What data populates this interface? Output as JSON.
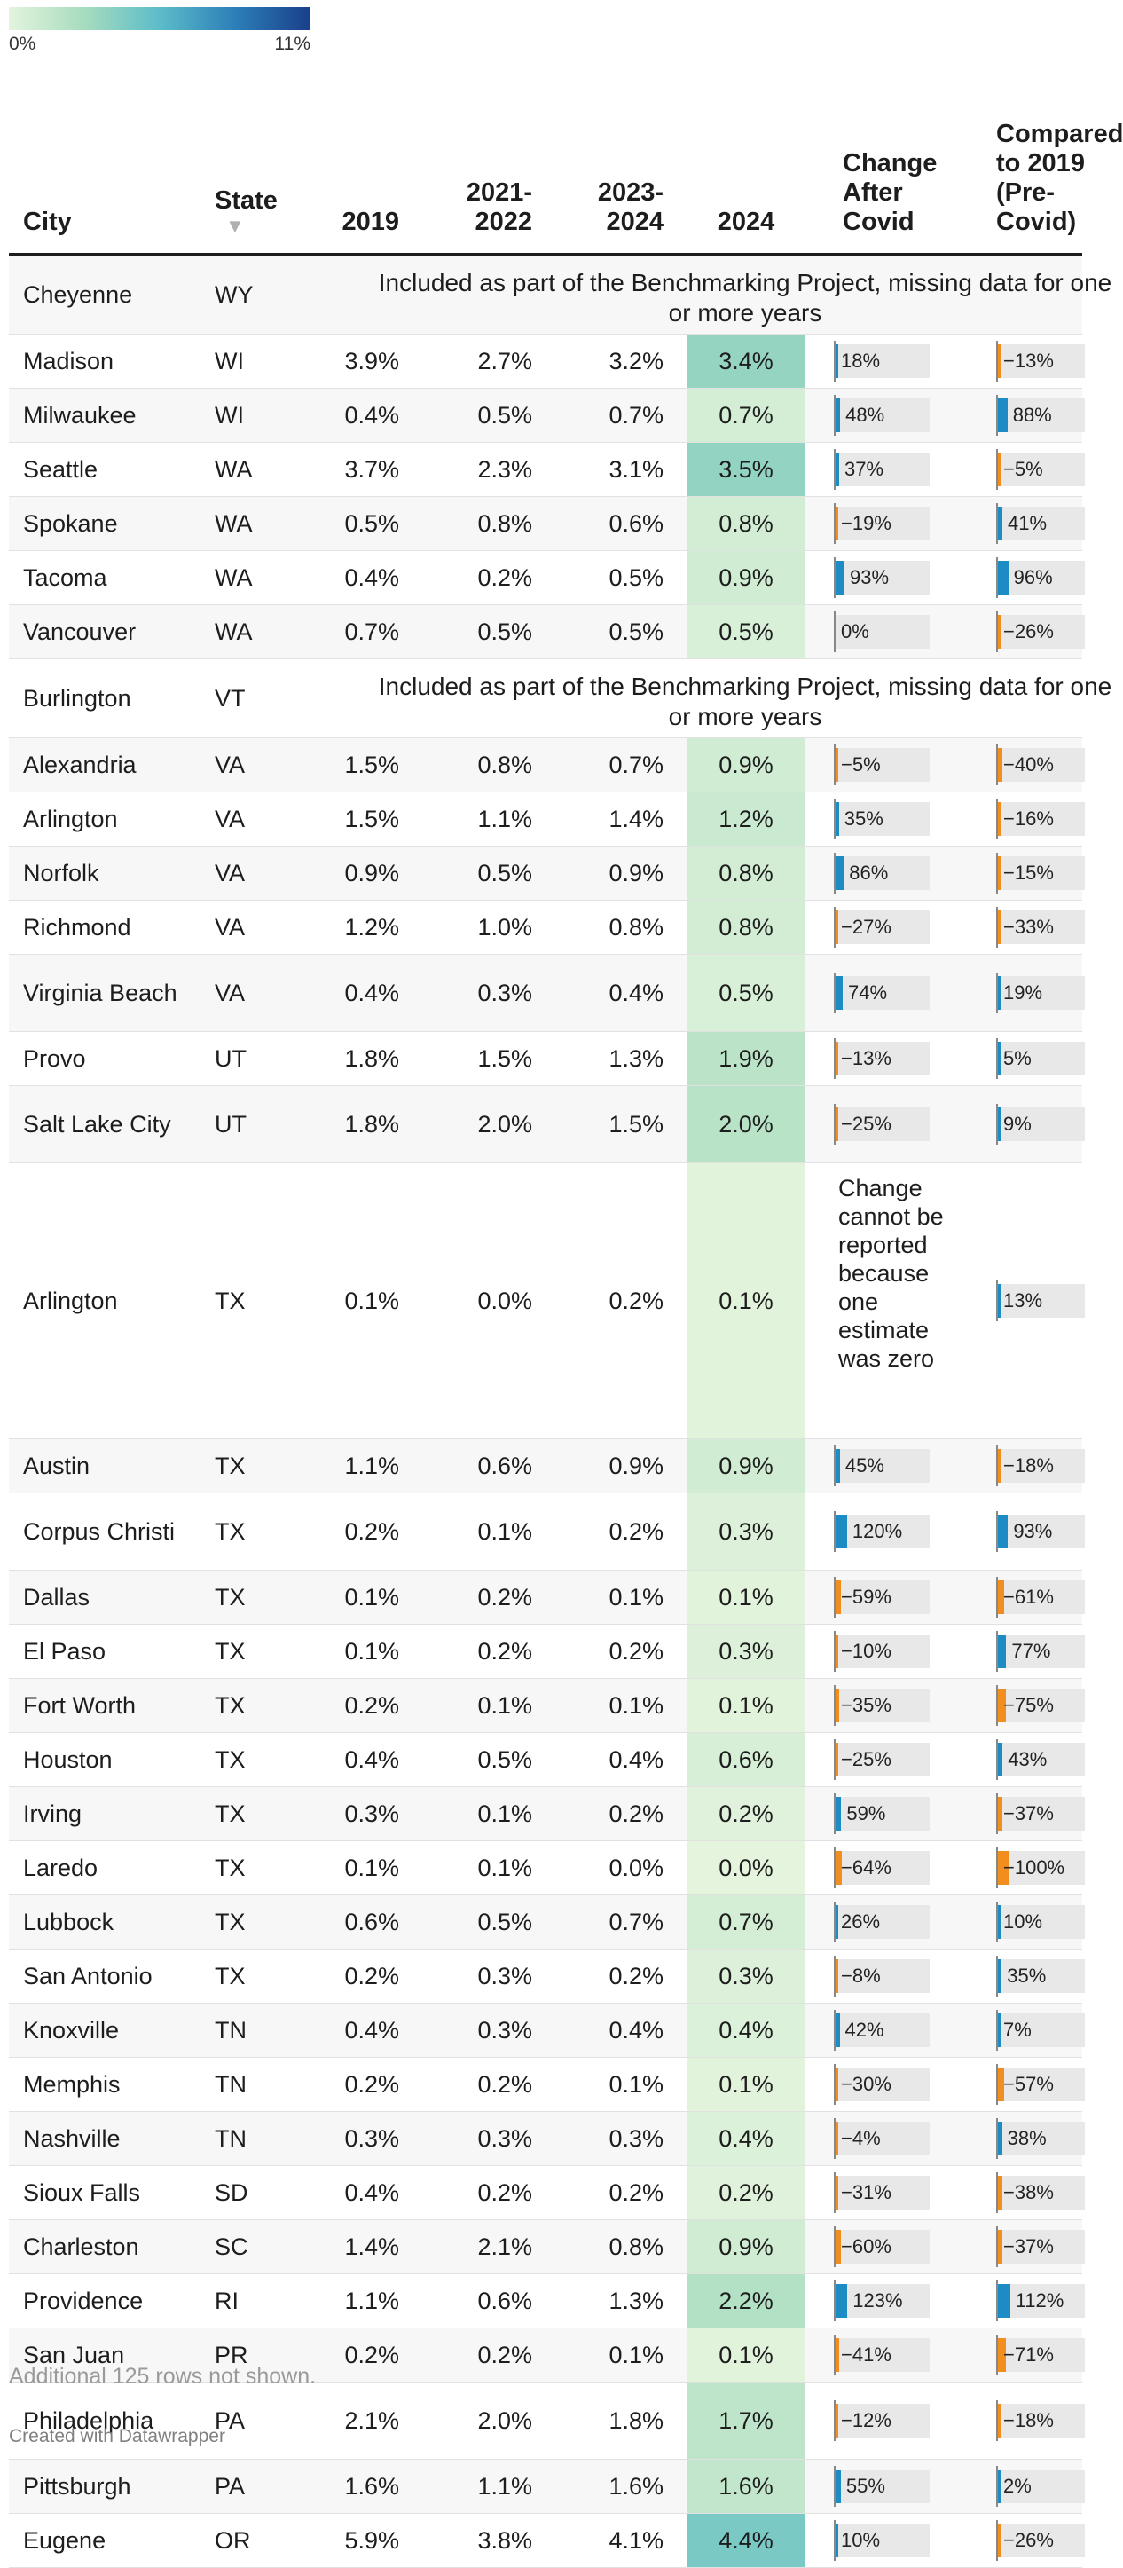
{
  "legend": {
    "min_label": "0%",
    "max_label": "11%",
    "max_value": 11,
    "colors": [
      "#e4f4dd",
      "#a7dcbf",
      "#5cbcc9",
      "#2c7fb8",
      "#1a3f8a"
    ]
  },
  "headers": {
    "city": "City",
    "state": "State",
    "sort_icon": "▼",
    "y2019": "2019",
    "y2122": "2021-\n2022",
    "y2324": "2023-\n2024",
    "y2024": "2024",
    "change": "Change\nAfter\nCovid",
    "compare": "Compared\nto 2019\n(Pre-\nCovid)"
  },
  "colors": {
    "positive_bar": "#1d8bc4",
    "negative_bar": "#f28e1e",
    "bar_track": "#e8e8e8"
  },
  "chart_data": {
    "type": "table",
    "columns": [
      "City",
      "State",
      "2019",
      "2021-2022",
      "2023-2024",
      "2024",
      "Change After Covid",
      "Compared to 2019 (Pre-Covid)"
    ],
    "rows": [
      {
        "city": "Cheyenne",
        "state": "WY",
        "note": "Included as part of the Benchmarking Project, missing data for one or more years"
      },
      {
        "city": "Madison",
        "state": "WI",
        "y2019": "3.9%",
        "y2122": "2.7%",
        "y2324": "3.2%",
        "y2024": "3.4%",
        "v2024": 3.4,
        "change": 18,
        "change_label": "18%",
        "compare": -13,
        "compare_label": "−13%"
      },
      {
        "city": "Milwaukee",
        "state": "WI",
        "y2019": "0.4%",
        "y2122": "0.5%",
        "y2324": "0.7%",
        "y2024": "0.7%",
        "v2024": 0.7,
        "change": 48,
        "change_label": "48%",
        "compare": 88,
        "compare_label": "88%"
      },
      {
        "city": "Seattle",
        "state": "WA",
        "y2019": "3.7%",
        "y2122": "2.3%",
        "y2324": "3.1%",
        "y2024": "3.5%",
        "v2024": 3.5,
        "change": 37,
        "change_label": "37%",
        "compare": -5,
        "compare_label": "−5%"
      },
      {
        "city": "Spokane",
        "state": "WA",
        "y2019": "0.5%",
        "y2122": "0.8%",
        "y2324": "0.6%",
        "y2024": "0.8%",
        "v2024": 0.8,
        "change": -19,
        "change_label": "−19%",
        "compare": 41,
        "compare_label": "41%"
      },
      {
        "city": "Tacoma",
        "state": "WA",
        "y2019": "0.4%",
        "y2122": "0.2%",
        "y2324": "0.5%",
        "y2024": "0.9%",
        "v2024": 0.9,
        "change": 93,
        "change_label": "93%",
        "compare": 96,
        "compare_label": "96%"
      },
      {
        "city": "Vancouver",
        "state": "WA",
        "y2019": "0.7%",
        "y2122": "0.5%",
        "y2324": "0.5%",
        "y2024": "0.5%",
        "v2024": 0.5,
        "change": 0,
        "change_label": "0%",
        "compare": -26,
        "compare_label": "−26%"
      },
      {
        "city": "Burlington",
        "state": "VT",
        "note": "Included as part of the Benchmarking Project, missing data for one or more years"
      },
      {
        "city": "Alexandria",
        "state": "VA",
        "y2019": "1.5%",
        "y2122": "0.8%",
        "y2324": "0.7%",
        "y2024": "0.9%",
        "v2024": 0.9,
        "change": -5,
        "change_label": "−5%",
        "compare": -40,
        "compare_label": "−40%"
      },
      {
        "city": "Arlington",
        "state": "VA",
        "y2019": "1.5%",
        "y2122": "1.1%",
        "y2324": "1.4%",
        "y2024": "1.2%",
        "v2024": 1.2,
        "change": 35,
        "change_label": "35%",
        "compare": -16,
        "compare_label": "−16%"
      },
      {
        "city": "Norfolk",
        "state": "VA",
        "y2019": "0.9%",
        "y2122": "0.5%",
        "y2324": "0.9%",
        "y2024": "0.8%",
        "v2024": 0.8,
        "change": 86,
        "change_label": "86%",
        "compare": -15,
        "compare_label": "−15%"
      },
      {
        "city": "Richmond",
        "state": "VA",
        "y2019": "1.2%",
        "y2122": "1.0%",
        "y2324": "0.8%",
        "y2024": "0.8%",
        "v2024": 0.8,
        "change": -27,
        "change_label": "−27%",
        "compare": -33,
        "compare_label": "−33%"
      },
      {
        "city": "Virginia Beach",
        "state": "VA",
        "y2019": "0.4%",
        "y2122": "0.3%",
        "y2324": "0.4%",
        "y2024": "0.5%",
        "v2024": 0.5,
        "change": 74,
        "change_label": "74%",
        "compare": 19,
        "compare_label": "19%"
      },
      {
        "city": "Provo",
        "state": "UT",
        "y2019": "1.8%",
        "y2122": "1.5%",
        "y2324": "1.3%",
        "y2024": "1.9%",
        "v2024": 1.9,
        "change": -13,
        "change_label": "−13%",
        "compare": 5,
        "compare_label": "5%"
      },
      {
        "city": "Salt Lake City",
        "state": "UT",
        "y2019": "1.8%",
        "y2122": "2.0%",
        "y2324": "1.5%",
        "y2024": "2.0%",
        "v2024": 2.0,
        "change": -25,
        "change_label": "−25%",
        "compare": 9,
        "compare_label": "9%"
      },
      {
        "city": "Arlington",
        "state": "TX",
        "y2019": "0.1%",
        "y2122": "0.0%",
        "y2324": "0.2%",
        "y2024": "0.1%",
        "v2024": 0.1,
        "change_note": "Change cannot be reported because one estimate was zero",
        "compare": 13,
        "compare_label": "13%"
      },
      {
        "city": "Austin",
        "state": "TX",
        "y2019": "1.1%",
        "y2122": "0.6%",
        "y2324": "0.9%",
        "y2024": "0.9%",
        "v2024": 0.9,
        "change": 45,
        "change_label": "45%",
        "compare": -18,
        "compare_label": "−18%"
      },
      {
        "city": "Corpus Christi",
        "state": "TX",
        "y2019": "0.2%",
        "y2122": "0.1%",
        "y2324": "0.2%",
        "y2024": "0.3%",
        "v2024": 0.3,
        "change": 120,
        "change_label": "120%",
        "compare": 93,
        "compare_label": "93%"
      },
      {
        "city": "Dallas",
        "state": "TX",
        "y2019": "0.1%",
        "y2122": "0.2%",
        "y2324": "0.1%",
        "y2024": "0.1%",
        "v2024": 0.1,
        "change": -59,
        "change_label": "−59%",
        "compare": -61,
        "compare_label": "−61%"
      },
      {
        "city": "El Paso",
        "state": "TX",
        "y2019": "0.1%",
        "y2122": "0.2%",
        "y2324": "0.2%",
        "y2024": "0.3%",
        "v2024": 0.3,
        "change": -10,
        "change_label": "−10%",
        "compare": 77,
        "compare_label": "77%"
      },
      {
        "city": "Fort Worth",
        "state": "TX",
        "y2019": "0.2%",
        "y2122": "0.1%",
        "y2324": "0.1%",
        "y2024": "0.1%",
        "v2024": 0.1,
        "change": -35,
        "change_label": "−35%",
        "compare": -75,
        "compare_label": "−75%"
      },
      {
        "city": "Houston",
        "state": "TX",
        "y2019": "0.4%",
        "y2122": "0.5%",
        "y2324": "0.4%",
        "y2024": "0.6%",
        "v2024": 0.6,
        "change": -25,
        "change_label": "−25%",
        "compare": 43,
        "compare_label": "43%"
      },
      {
        "city": "Irving",
        "state": "TX",
        "y2019": "0.3%",
        "y2122": "0.1%",
        "y2324": "0.2%",
        "y2024": "0.2%",
        "v2024": 0.2,
        "change": 59,
        "change_label": "59%",
        "compare": -37,
        "compare_label": "−37%"
      },
      {
        "city": "Laredo",
        "state": "TX",
        "y2019": "0.1%",
        "y2122": "0.1%",
        "y2324": "0.0%",
        "y2024": "0.0%",
        "v2024": 0.0,
        "change": -64,
        "change_label": "−64%",
        "compare": -100,
        "compare_label": "−100%"
      },
      {
        "city": "Lubbock",
        "state": "TX",
        "y2019": "0.6%",
        "y2122": "0.5%",
        "y2324": "0.7%",
        "y2024": "0.7%",
        "v2024": 0.7,
        "change": 26,
        "change_label": "26%",
        "compare": 10,
        "compare_label": "10%"
      },
      {
        "city": "San Antonio",
        "state": "TX",
        "y2019": "0.2%",
        "y2122": "0.3%",
        "y2324": "0.2%",
        "y2024": "0.3%",
        "v2024": 0.3,
        "change": -8,
        "change_label": "−8%",
        "compare": 35,
        "compare_label": "35%"
      },
      {
        "city": "Knoxville",
        "state": "TN",
        "y2019": "0.4%",
        "y2122": "0.3%",
        "y2324": "0.4%",
        "y2024": "0.4%",
        "v2024": 0.4,
        "change": 42,
        "change_label": "42%",
        "compare": 7,
        "compare_label": "7%"
      },
      {
        "city": "Memphis",
        "state": "TN",
        "y2019": "0.2%",
        "y2122": "0.2%",
        "y2324": "0.1%",
        "y2024": "0.1%",
        "v2024": 0.1,
        "change": -30,
        "change_label": "−30%",
        "compare": -57,
        "compare_label": "−57%"
      },
      {
        "city": "Nashville",
        "state": "TN",
        "y2019": "0.3%",
        "y2122": "0.3%",
        "y2324": "0.3%",
        "y2024": "0.4%",
        "v2024": 0.4,
        "change": -4,
        "change_label": "−4%",
        "compare": 38,
        "compare_label": "38%"
      },
      {
        "city": "Sioux Falls",
        "state": "SD",
        "y2019": "0.4%",
        "y2122": "0.2%",
        "y2324": "0.2%",
        "y2024": "0.2%",
        "v2024": 0.2,
        "change": -31,
        "change_label": "−31%",
        "compare": -38,
        "compare_label": "−38%"
      },
      {
        "city": "Charleston",
        "state": "SC",
        "y2019": "1.4%",
        "y2122": "2.1%",
        "y2324": "0.8%",
        "y2024": "0.9%",
        "v2024": 0.9,
        "change": -60,
        "change_label": "−60%",
        "compare": -37,
        "compare_label": "−37%"
      },
      {
        "city": "Providence",
        "state": "RI",
        "y2019": "1.1%",
        "y2122": "0.6%",
        "y2324": "1.3%",
        "y2024": "2.2%",
        "v2024": 2.2,
        "change": 123,
        "change_label": "123%",
        "compare": 112,
        "compare_label": "112%"
      },
      {
        "city": "San Juan",
        "state": "PR",
        "y2019": "0.2%",
        "y2122": "0.2%",
        "y2324": "0.1%",
        "y2024": "0.1%",
        "v2024": 0.1,
        "change": -41,
        "change_label": "−41%",
        "compare": -71,
        "compare_label": "−71%"
      },
      {
        "city": "Philadelphia",
        "state": "PA",
        "y2019": "2.1%",
        "y2122": "2.0%",
        "y2324": "1.8%",
        "y2024": "1.7%",
        "v2024": 1.7,
        "change": -12,
        "change_label": "−12%",
        "compare": -18,
        "compare_label": "−18%"
      },
      {
        "city": "Pittsburgh",
        "state": "PA",
        "y2019": "1.6%",
        "y2122": "1.1%",
        "y2324": "1.6%",
        "y2024": "1.6%",
        "v2024": 1.6,
        "change": 55,
        "change_label": "55%",
        "compare": 2,
        "compare_label": "2%"
      },
      {
        "city": "Eugene",
        "state": "OR",
        "y2019": "5.9%",
        "y2122": "3.8%",
        "y2324": "4.1%",
        "y2024": "4.4%",
        "v2024": 4.4,
        "change": 10,
        "change_label": "10%",
        "compare": -26,
        "compare_label": "−26%"
      }
    ]
  },
  "footnote": "Additional 125 rows not shown.",
  "credit": "Created with Datawrapper"
}
